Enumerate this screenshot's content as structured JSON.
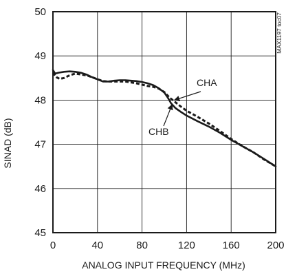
{
  "chart_data": {
    "type": "line",
    "title": "",
    "side_code": "MAX1197 toc07",
    "xlabel": "ANALOG INPUT FREQUENCY (MHz)",
    "ylabel": "SINAD (dB)",
    "xlim": [
      0,
      200
    ],
    "ylim": [
      45,
      50
    ],
    "xticks": [
      0,
      40,
      80,
      120,
      160,
      200
    ],
    "yticks": [
      45,
      46,
      47,
      48,
      49,
      50
    ],
    "grid": true,
    "legend": "none",
    "series": [
      {
        "name": "CHA",
        "style": "dashed",
        "color": "#1a1a1a",
        "x": [
          0,
          3,
          6,
          10,
          15,
          20,
          25,
          30,
          35,
          40,
          45,
          50,
          55,
          60,
          65,
          70,
          75,
          80,
          85,
          90,
          95,
          100,
          105,
          110,
          115,
          120,
          130,
          140,
          150,
          160,
          170,
          180,
          190,
          200
        ],
        "y": [
          48.62,
          48.52,
          48.48,
          48.5,
          48.56,
          48.6,
          48.58,
          48.56,
          48.52,
          48.47,
          48.43,
          48.42,
          48.42,
          48.42,
          48.42,
          48.4,
          48.38,
          48.35,
          48.32,
          48.3,
          48.26,
          48.18,
          48.05,
          47.95,
          47.85,
          47.76,
          47.62,
          47.47,
          47.3,
          47.12,
          46.96,
          46.82,
          46.65,
          46.5
        ]
      },
      {
        "name": "CHB",
        "style": "solid",
        "color": "#1a1a1a",
        "x": [
          0,
          2,
          5,
          10,
          15,
          20,
          25,
          30,
          35,
          40,
          45,
          50,
          55,
          60,
          65,
          70,
          75,
          80,
          85,
          90,
          95,
          100,
          103,
          106,
          110,
          115,
          120,
          130,
          140,
          150,
          160,
          170,
          180,
          190,
          200
        ],
        "y": [
          48.68,
          48.6,
          48.62,
          48.64,
          48.65,
          48.64,
          48.62,
          48.58,
          48.52,
          48.47,
          48.42,
          48.42,
          48.44,
          48.45,
          48.45,
          48.44,
          48.43,
          48.41,
          48.38,
          48.34,
          48.27,
          48.17,
          48.06,
          47.93,
          47.82,
          47.73,
          47.65,
          47.52,
          47.4,
          47.26,
          47.1,
          46.96,
          46.82,
          46.66,
          46.5
        ]
      }
    ],
    "annotations": [
      {
        "text": "CHA",
        "target_series": "CHA",
        "x": 109,
        "y": 48.0
      },
      {
        "text": "CHB",
        "target_series": "CHB",
        "x": 107,
        "y": 47.9
      }
    ]
  }
}
